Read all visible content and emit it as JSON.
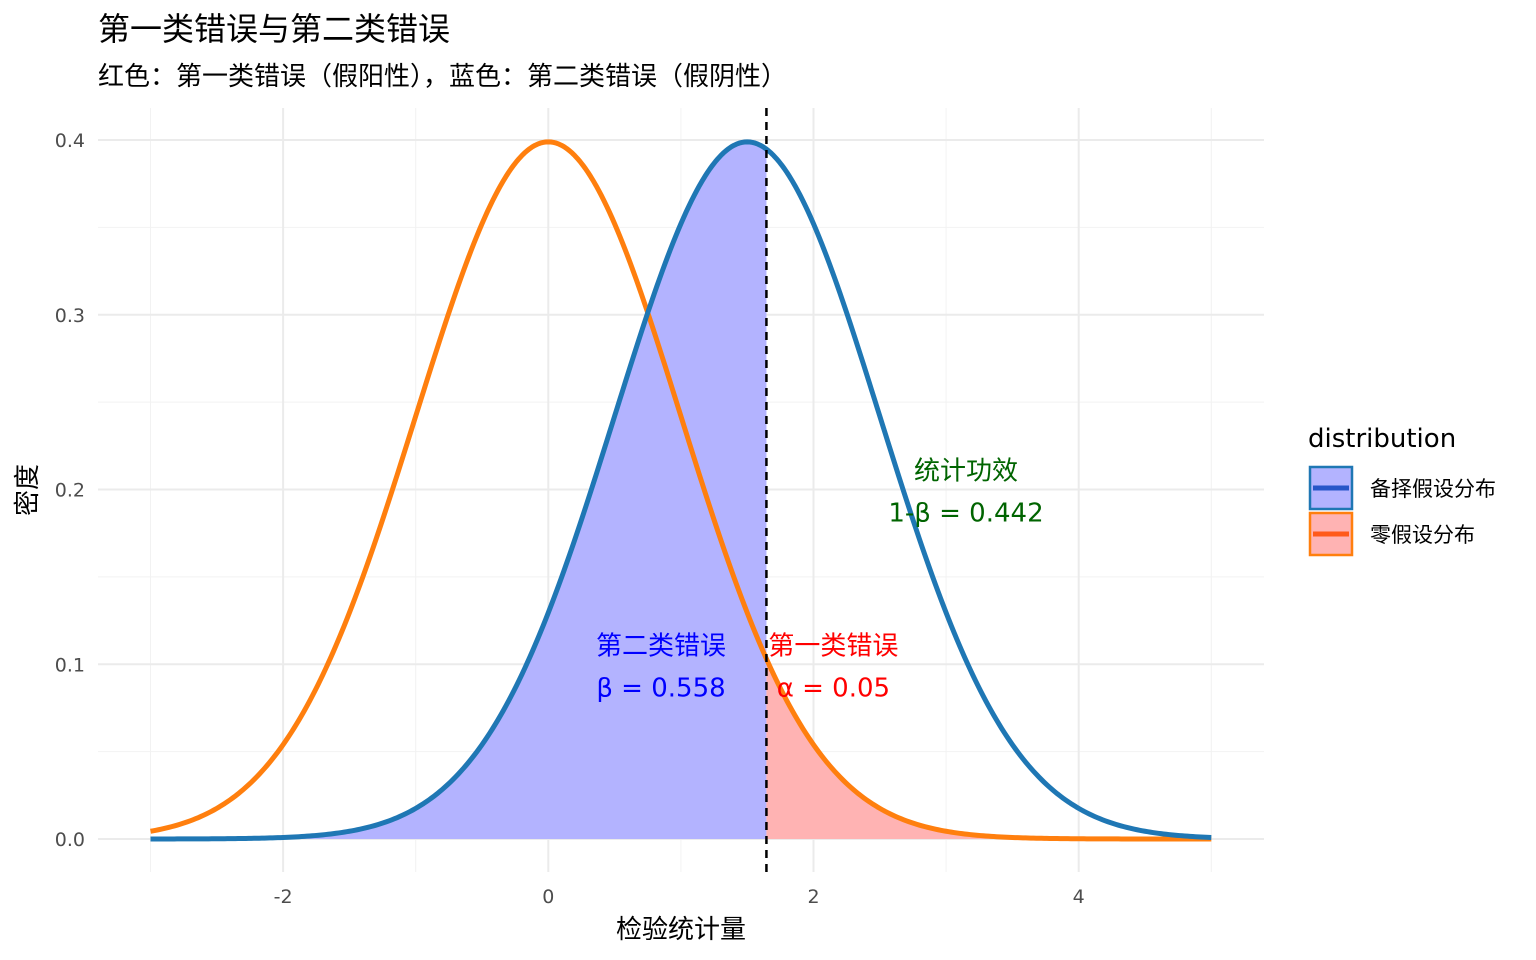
{
  "chart_data": {
    "type": "area",
    "title": "第一类错误与第二类错误",
    "subtitle": "红色：第一类错误（假阳性），蓝色：第二类错误（假阴性）",
    "xlabel": "检验统计量",
    "ylabel": "密度",
    "xlim": [
      -3,
      5
    ],
    "ylim": [
      0,
      0.4
    ],
    "x_ticks": [
      -2,
      0,
      2,
      4
    ],
    "x_tick_labels": [
      "-2",
      "0",
      "2",
      "4"
    ],
    "y_ticks": [
      0,
      0.1,
      0.2,
      0.3,
      0.4
    ],
    "y_tick_labels": [
      "0.0",
      "0.1",
      "0.2",
      "0.3",
      "0.4"
    ],
    "grid": true,
    "critical_value": 1.645,
    "series": [
      {
        "name": "备择假设分布",
        "distribution": "normal",
        "mean": 1.5,
        "sd": 1,
        "line_color": "#1f77b4",
        "fill_color": "#b3b3ff",
        "shaded_region": [
          -3,
          1.645
        ]
      },
      {
        "name": "零假设分布",
        "distribution": "normal",
        "mean": 0,
        "sd": 1,
        "line_color": "#ff7f0e",
        "fill_color": "#ffb3b3",
        "shaded_region": [
          1.645,
          5
        ]
      }
    ],
    "legend": {
      "title": "distribution",
      "position": "right",
      "entries": [
        "备择假设分布",
        "零假设分布"
      ]
    },
    "annotations": [
      {
        "line1": "第二类错误",
        "line2": "β = 0.558",
        "x": 0.85,
        "y": 0.1,
        "color": "#0000ff"
      },
      {
        "line1": "第一类错误",
        "line2": "α = 0.05",
        "x": 2.15,
        "y": 0.1,
        "color": "#ff0000"
      },
      {
        "line1": "统计功效",
        "line2": "1-β = 0.442",
        "x": 3.15,
        "y": 0.2,
        "color": "#006400"
      }
    ]
  }
}
